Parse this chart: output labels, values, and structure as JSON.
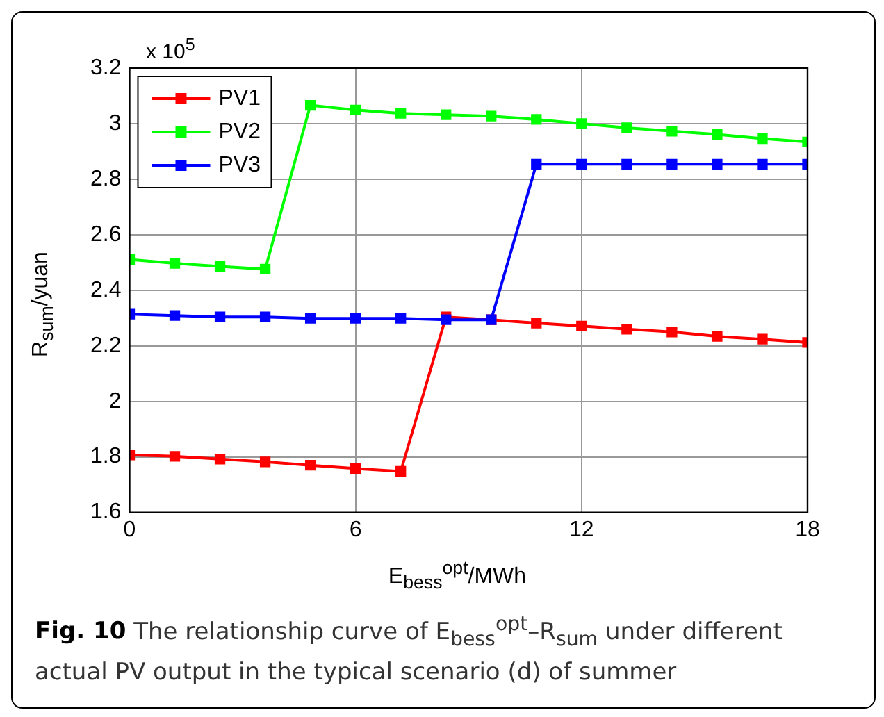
{
  "chart_data": {
    "type": "line",
    "xlabel": "E$_{bess}$$^{opt}$/MWh",
    "ylabel": "R$_{sum}$/yuan",
    "x": [
      0,
      1.2,
      2.4,
      3.6,
      4.8,
      6,
      7.2,
      8.4,
      9.6,
      10.8,
      12,
      13.2,
      14.4,
      15.6,
      16.8,
      18
    ],
    "series": [
      {
        "name": "PV1",
        "color": "#ff0000",
        "values": [
          1.807,
          1.802,
          1.792,
          1.782,
          1.77,
          1.758,
          1.748,
          2.304,
          2.294,
          2.282,
          2.271,
          2.26,
          2.25,
          2.234,
          2.224,
          2.212
        ]
      },
      {
        "name": "PV2",
        "color": "#00ff00",
        "values": [
          2.511,
          2.497,
          2.486,
          2.476,
          3.066,
          3.049,
          3.037,
          3.032,
          3.027,
          3.015,
          3.0,
          2.985,
          2.973,
          2.961,
          2.946,
          2.934
        ]
      },
      {
        "name": "PV3",
        "color": "#0000ff",
        "values": [
          2.314,
          2.309,
          2.304,
          2.304,
          2.299,
          2.299,
          2.299,
          2.294,
          2.294,
          2.854,
          2.854,
          2.854,
          2.854,
          2.854,
          2.854,
          2.854
        ]
      }
    ],
    "xlim": [
      0,
      18
    ],
    "xticks": [
      0,
      6,
      12,
      18
    ],
    "ylim": [
      1.6,
      3.2
    ],
    "yticks": [
      1.6,
      1.8,
      2,
      2.2,
      2.4,
      2.6,
      2.8,
      3,
      3.2
    ],
    "grid": true,
    "legend": "top left",
    "marker": "square",
    "line_style": "solid",
    "annotations": [
      "x 10$^{5}$",
      "Fig. 10",
      "The relationship curve of E$_{bess}$$^{opt}$–R$_{sum}$ under different actual PV output in the typical scenario (d) of summer"
    ]
  }
}
